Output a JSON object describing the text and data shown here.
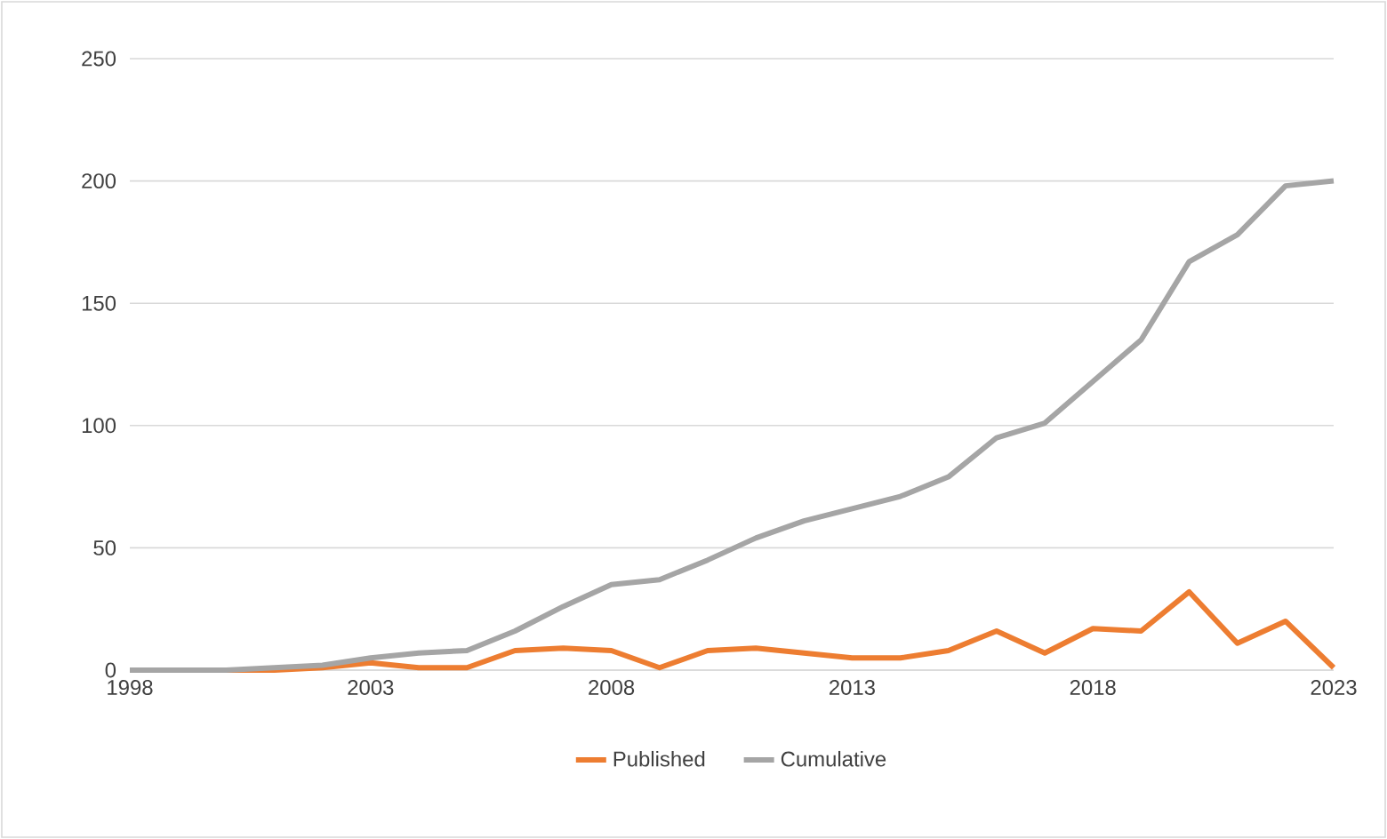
{
  "chart_data": {
    "type": "line",
    "x": [
      1998,
      1999,
      2000,
      2001,
      2002,
      2003,
      2004,
      2005,
      2006,
      2007,
      2008,
      2009,
      2010,
      2011,
      2012,
      2013,
      2014,
      2015,
      2016,
      2017,
      2018,
      2019,
      2020,
      2021,
      2022,
      2023
    ],
    "series": [
      {
        "name": "Published",
        "color": "#ed7d31",
        "values": [
          0,
          0,
          0,
          0,
          1,
          3,
          1,
          1,
          8,
          9,
          8,
          1,
          8,
          9,
          7,
          5,
          5,
          8,
          16,
          7,
          17,
          16,
          32,
          11,
          20,
          1
        ]
      },
      {
        "name": "Cumulative",
        "color": "#a5a5a5",
        "values": [
          0,
          0,
          0,
          1,
          2,
          5,
          7,
          8,
          16,
          26,
          35,
          37,
          45,
          54,
          61,
          66,
          71,
          79,
          95,
          101,
          118,
          135,
          167,
          178,
          198,
          200
        ]
      }
    ],
    "xlim": [
      1998,
      2023
    ],
    "xticks": [
      1998,
      2003,
      2008,
      2013,
      2018,
      2023
    ],
    "ylim": [
      0,
      250
    ],
    "yticks": [
      0,
      50,
      100,
      150,
      200,
      250
    ],
    "grid": "y",
    "legend": "bottom",
    "marker": "none",
    "line_style": "solid"
  }
}
